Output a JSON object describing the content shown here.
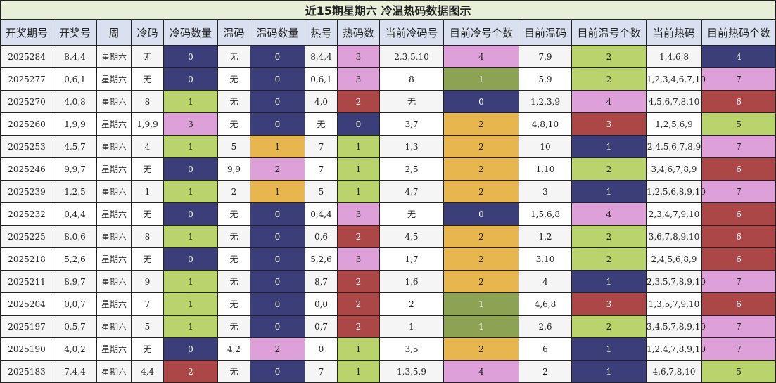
{
  "title": "近15期星期六 冷温热码数据图示",
  "columns": [
    "开奖期号",
    "开奖号",
    "周",
    "冷码",
    "冷码数量",
    "温码",
    "温码数量",
    "热号",
    "热码数",
    "当前冷码号",
    "目前冷号个数",
    "目前温码",
    "目前温号个数",
    "当前热码",
    "目前热码个数"
  ],
  "palette": {
    "navy": "#3b3e78",
    "pink": "#dea0d8",
    "lgreen": "#b9d46c",
    "olive": "#8ba353",
    "red": "#ab4747",
    "gold": "#e7b64e",
    "header_bg": "#d9e0f0",
    "title_bg": "#e8efd9"
  },
  "colored_columns": [
    4,
    6,
    8,
    10,
    12,
    14
  ],
  "rows": [
    {
      "cells": [
        "2025284",
        "8,4,4",
        "星期六",
        "无",
        "0",
        "无",
        "0",
        "8,4,4",
        "3",
        "2,3,5,10",
        "4",
        "7,9",
        "2",
        "1,4,6,8",
        "4"
      ],
      "colors": [
        "navy",
        "navy",
        "pink",
        "pink",
        "lgreen",
        "navy"
      ]
    },
    {
      "cells": [
        "2025277",
        "0,6,1",
        "星期六",
        "无",
        "0",
        "无",
        "0",
        "0,6,1",
        "3",
        "8",
        "1",
        "5,9",
        "2",
        "1,2,3,4,6,7,10",
        "7"
      ],
      "colors": [
        "navy",
        "navy",
        "pink",
        "olive",
        "lgreen",
        "pink"
      ]
    },
    {
      "cells": [
        "2025270",
        "4,0,8",
        "星期六",
        "8",
        "1",
        "无",
        "0",
        "4,0",
        "2",
        "无",
        "0",
        "1,2,3,9",
        "4",
        "4,5,6,7,8,10",
        "6"
      ],
      "colors": [
        "lgreen",
        "navy",
        "red",
        "navy",
        "pink",
        "red"
      ]
    },
    {
      "cells": [
        "2025260",
        "1,9,9",
        "星期六",
        "1,9,9",
        "3",
        "无",
        "0",
        "无",
        "0",
        "3,7",
        "2",
        "4,8,10",
        "3",
        "1,2,5,6,9",
        "5"
      ],
      "colors": [
        "pink",
        "navy",
        "navy",
        "gold",
        "red",
        "lgreen"
      ]
    },
    {
      "cells": [
        "2025253",
        "4,5,7",
        "星期六",
        "4",
        "1",
        "5",
        "1",
        "7",
        "1",
        "1,3",
        "2",
        "10",
        "1",
        "2,4,5,6,7,8,9",
        "7"
      ],
      "colors": [
        "lgreen",
        "gold",
        "lgreen",
        "gold",
        "navy",
        "pink"
      ]
    },
    {
      "cells": [
        "2025246",
        "9,9,7",
        "星期六",
        "无",
        "0",
        "9,9",
        "2",
        "7",
        "1",
        "2,5",
        "2",
        "1,10",
        "2",
        "3,4,6,7,8,9",
        "6"
      ],
      "colors": [
        "navy",
        "pink",
        "lgreen",
        "gold",
        "lgreen",
        "red"
      ]
    },
    {
      "cells": [
        "2025239",
        "1,2,5",
        "星期六",
        "1",
        "1",
        "2",
        "1",
        "5",
        "1",
        "4,7",
        "2",
        "3",
        "1",
        "1,2,5,6,8,9,10",
        "7"
      ],
      "colors": [
        "lgreen",
        "gold",
        "lgreen",
        "gold",
        "navy",
        "pink"
      ]
    },
    {
      "cells": [
        "2025232",
        "0,4,4",
        "星期六",
        "无",
        "0",
        "无",
        "0",
        "0,4,4",
        "3",
        "无",
        "0",
        "1,5,6,8",
        "4",
        "2,3,4,7,9,10",
        "6"
      ],
      "colors": [
        "navy",
        "navy",
        "pink",
        "navy",
        "pink",
        "red"
      ]
    },
    {
      "cells": [
        "2025225",
        "8,0,6",
        "星期六",
        "8",
        "1",
        "无",
        "0",
        "0,6",
        "2",
        "4,5",
        "2",
        "1,2",
        "2",
        "3,6,7,8,9,10",
        "6"
      ],
      "colors": [
        "lgreen",
        "navy",
        "red",
        "gold",
        "lgreen",
        "red"
      ]
    },
    {
      "cells": [
        "2025218",
        "5,2,6",
        "星期六",
        "无",
        "0",
        "无",
        "0",
        "5,2,6",
        "3",
        "1,7",
        "2",
        "3,10",
        "2",
        "2,4,5,6,8,9",
        "6"
      ],
      "colors": [
        "navy",
        "navy",
        "pink",
        "gold",
        "lgreen",
        "red"
      ]
    },
    {
      "cells": [
        "2025211",
        "8,9,7",
        "星期六",
        "9",
        "1",
        "无",
        "0",
        "8,7",
        "2",
        "1,6",
        "2",
        "4",
        "1",
        "2,3,5,7,8,9,10",
        "7"
      ],
      "colors": [
        "lgreen",
        "navy",
        "red",
        "gold",
        "navy",
        "pink"
      ]
    },
    {
      "cells": [
        "2025204",
        "0,0,7",
        "星期六",
        "7",
        "1",
        "无",
        "0",
        "0,0",
        "2",
        "2",
        "1",
        "4,6,8",
        "3",
        "1,3,5,7,9,10",
        "6"
      ],
      "colors": [
        "lgreen",
        "navy",
        "red",
        "olive",
        "red",
        "red"
      ]
    },
    {
      "cells": [
        "2025197",
        "0,5,7",
        "星期六",
        "5",
        "1",
        "无",
        "0",
        "0,7",
        "2",
        "1",
        "1",
        "2,6",
        "2",
        "3,4,5,7,8,9,10",
        "7"
      ],
      "colors": [
        "lgreen",
        "navy",
        "red",
        "olive",
        "lgreen",
        "pink"
      ]
    },
    {
      "cells": [
        "2025190",
        "4,0,2",
        "星期六",
        "无",
        "0",
        "4,2",
        "2",
        "0",
        "1",
        "3,5",
        "2",
        "6",
        "1",
        "1,2,4,7,8,9,10",
        "7"
      ],
      "colors": [
        "navy",
        "pink",
        "lgreen",
        "gold",
        "navy",
        "pink"
      ]
    },
    {
      "cells": [
        "2025183",
        "7,4,4",
        "星期六",
        "4,4",
        "2",
        "无",
        "0",
        "7",
        "1",
        "1,3,5,9",
        "4",
        "2",
        "1",
        "4,6,7,8,10",
        "5"
      ],
      "colors": [
        "red",
        "navy",
        "lgreen",
        "pink",
        "navy",
        "lgreen"
      ]
    }
  ]
}
